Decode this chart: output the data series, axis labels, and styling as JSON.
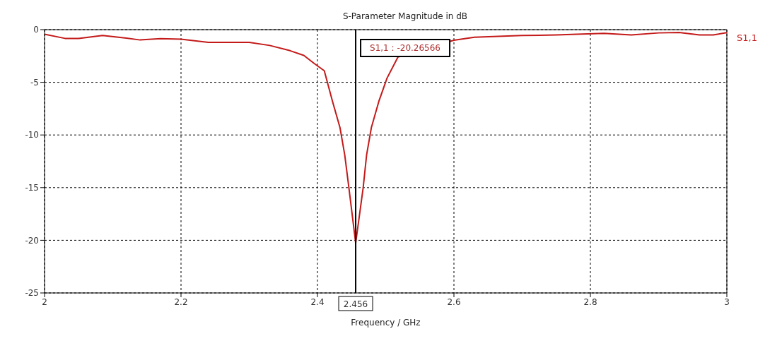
{
  "chart_data": {
    "type": "line",
    "title": "S-Parameter Magnitude in dB",
    "xlabel": "Frequency / GHz",
    "series": [
      {
        "name": "S1,1",
        "color": "#c41a1a",
        "x": [
          2.0,
          2.03,
          2.05,
          2.085,
          2.12,
          2.14,
          2.17,
          2.2,
          2.24,
          2.3,
          2.33,
          2.36,
          2.38,
          2.395,
          2.41,
          2.422,
          2.433,
          2.44,
          2.447,
          2.456,
          2.467,
          2.472,
          2.479,
          2.49,
          2.502,
          2.518,
          2.6,
          2.63,
          2.7,
          2.75,
          2.78,
          2.82,
          2.86,
          2.9,
          2.93,
          2.96,
          2.98,
          3.0
        ],
        "values": [
          -0.43,
          -0.83,
          -0.83,
          -0.55,
          -0.8,
          -0.98,
          -0.86,
          -0.9,
          -1.2,
          -1.2,
          -1.5,
          -2.0,
          -2.45,
          -3.2,
          -3.9,
          -6.8,
          -9.3,
          -11.9,
          -15.5,
          -20.27,
          -15.0,
          -11.9,
          -9.3,
          -6.8,
          -4.6,
          -2.6,
          -1.0,
          -0.72,
          -0.56,
          -0.5,
          -0.43,
          -0.36,
          -0.5,
          -0.31,
          -0.27,
          -0.5,
          -0.5,
          -0.29
        ]
      }
    ],
    "xlim": [
      2,
      3
    ],
    "xticks": [
      2,
      2.2,
      2.4,
      2.6,
      2.8,
      3
    ],
    "ylim": [
      -25,
      0
    ],
    "yticks": [
      -25,
      -20,
      -15,
      -10,
      -5,
      0
    ],
    "grid": true,
    "marker": "none",
    "line_style": "solid",
    "ref_lines": [
      {
        "axis": "x",
        "value": 2.456,
        "label": "2.456",
        "color": "#000000",
        "line_style": "solid"
      }
    ],
    "annotations": [
      "S1,1 : -20.26566"
    ]
  }
}
